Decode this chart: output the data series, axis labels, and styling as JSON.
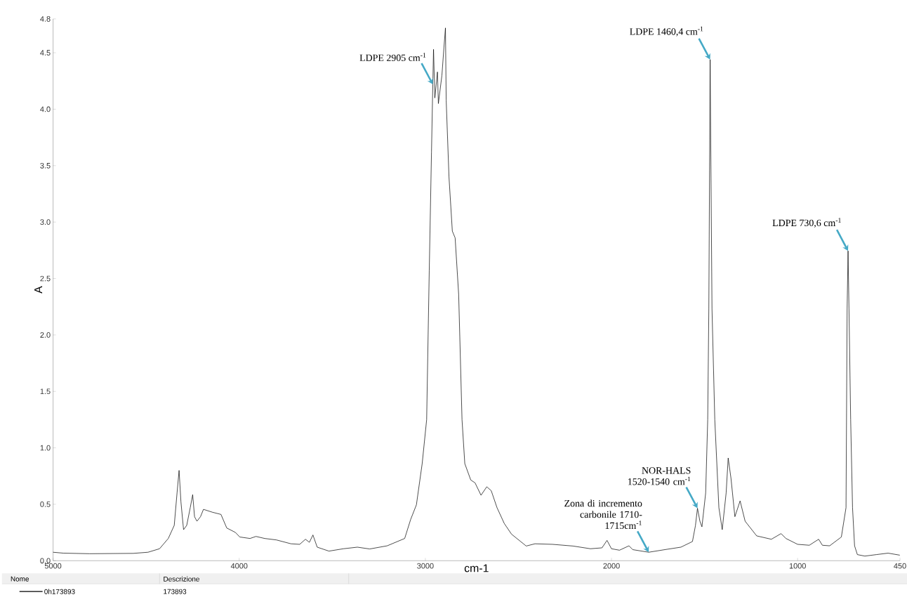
{
  "chart_data": {
    "type": "line",
    "xlabel": "cm-1",
    "ylabel": "A",
    "xlim": [
      5000,
      450
    ],
    "xticks": [
      5000,
      4000,
      3000,
      2000,
      1000,
      450
    ],
    "ylim": [
      0,
      4.8
    ],
    "yticks": [
      {
        "value": 0,
        "label": "0.0"
      },
      {
        "value": 0.5,
        "label": "0.5"
      },
      {
        "value": 1,
        "label": "1.0"
      },
      {
        "value": 1.5,
        "label": "1.5"
      },
      {
        "value": 2,
        "label": "2.0"
      },
      {
        "value": 2.5,
        "label": "2.5"
      },
      {
        "value": 3,
        "label": "3.0"
      },
      {
        "value": 3.5,
        "label": "3.5"
      },
      {
        "value": 4,
        "label": "4.0"
      },
      {
        "value": 4.5,
        "label": "4.5"
      },
      {
        "value": 4.8,
        "label": "4.8"
      }
    ],
    "grid": false,
    "legend": "bottom",
    "series": [
      {
        "name": "0h173893",
        "color": "#000000",
        "x": [
          5000,
          4945,
          4804,
          4569,
          4490,
          4428,
          4381,
          4349,
          4334,
          4323,
          4313,
          4299,
          4282,
          4263,
          4250,
          4240,
          4227,
          4208,
          4192,
          4145,
          4098,
          4067,
          4020,
          3997,
          3942,
          3910,
          3863,
          3800,
          3722,
          3675,
          3644,
          3623,
          3604,
          3581,
          3518,
          3440,
          3365,
          3299,
          3205,
          3111,
          3079,
          3048,
          3017,
          2993,
          2979,
          2967,
          2960,
          2956,
          2949,
          2935,
          2930,
          2911,
          2900,
          2892,
          2888,
          2873,
          2855,
          2840,
          2821,
          2803,
          2788,
          2756,
          2733,
          2701,
          2670,
          2646,
          2615,
          2576,
          2537,
          2458,
          2411,
          2317,
          2207,
          2113,
          2051,
          2024,
          2000,
          1957,
          1906,
          1886,
          1800,
          1706,
          1627,
          1565,
          1549,
          1538,
          1525,
          1514,
          1494,
          1483,
          1477,
          1470,
          1460,
          1445,
          1423,
          1405,
          1384,
          1373,
          1358,
          1337,
          1309,
          1282,
          1220,
          1141,
          1089,
          1063,
          1000,
          937,
          887,
          867,
          828,
          765,
          740,
          734,
          729,
          724,
          715,
          705,
          694,
          679,
          639,
          577,
          514,
          451
        ],
        "values": [
          0.075,
          0.067,
          0.062,
          0.065,
          0.075,
          0.106,
          0.197,
          0.313,
          0.6,
          0.8,
          0.52,
          0.275,
          0.313,
          0.47,
          0.585,
          0.39,
          0.35,
          0.39,
          0.455,
          0.43,
          0.41,
          0.29,
          0.25,
          0.21,
          0.197,
          0.215,
          0.197,
          0.184,
          0.15,
          0.145,
          0.19,
          0.163,
          0.228,
          0.12,
          0.085,
          0.106,
          0.12,
          0.104,
          0.132,
          0.197,
          0.365,
          0.495,
          0.86,
          1.25,
          2.57,
          3.62,
          4.22,
          4.53,
          4.1,
          4.33,
          4.05,
          4.3,
          4.55,
          4.72,
          4.08,
          3.4,
          2.92,
          2.86,
          2.36,
          1.25,
          0.86,
          0.715,
          0.69,
          0.58,
          0.655,
          0.62,
          0.47,
          0.33,
          0.235,
          0.13,
          0.15,
          0.145,
          0.13,
          0.106,
          0.114,
          0.18,
          0.106,
          0.093,
          0.132,
          0.098,
          0.075,
          0.1,
          0.12,
          0.17,
          0.31,
          0.465,
          0.35,
          0.3,
          0.6,
          1.25,
          2.23,
          4.44,
          2.23,
          1.25,
          0.47,
          0.275,
          0.6,
          0.91,
          0.73,
          0.39,
          0.53,
          0.35,
          0.22,
          0.19,
          0.24,
          0.197,
          0.145,
          0.137,
          0.19,
          0.137,
          0.132,
          0.21,
          0.47,
          2.23,
          2.745,
          2.23,
          1.25,
          0.47,
          0.132,
          0.054,
          0.041,
          0.054,
          0.067,
          0.049
        ]
      }
    ],
    "annotations": [
      {
        "text": "LDPE 2905 cm$^{-1}$",
        "x": 2960,
        "y": 4.22
      },
      {
        "text": "LDPE 1460,4 cm$^{-1}$",
        "x": 1470,
        "y": 4.44
      },
      {
        "text": "LDPE 730,6 cm$^{-1}$",
        "x": 729,
        "y": 2.745
      },
      {
        "text": "NOR-HALS 1520-1540 cm$^{-1}$",
        "x": 1538,
        "y": 0.465
      },
      {
        "text": "Zona di incremento carbonile 1710-1715cm$^{-1}$",
        "x": 1800,
        "y": 0.075
      },
      "Nome",
      "Descrizione",
      "173893"
    ]
  }
}
